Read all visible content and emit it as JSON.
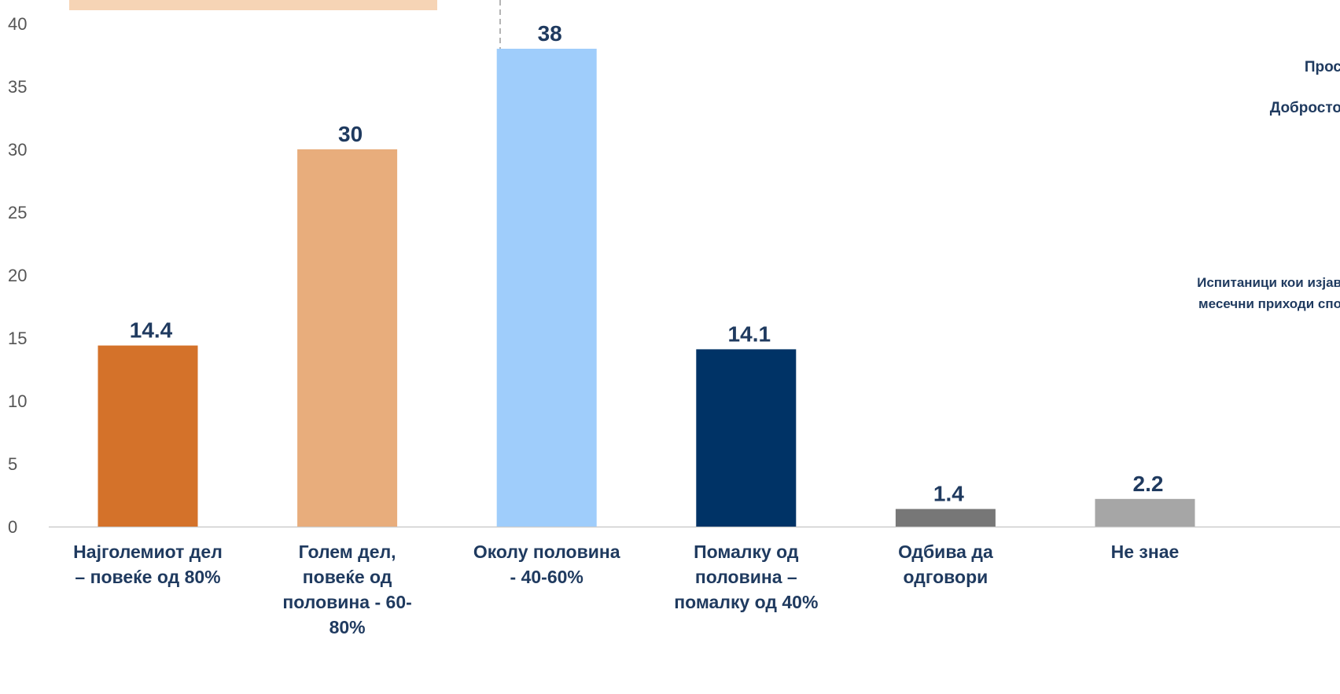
{
  "colors": {
    "axis": "#cccccc",
    "tick_text": "#555555",
    "label_text": "#1f3a5f",
    "peach_box": "#f6d4b5"
  },
  "side_texts": {
    "line1": "Прос",
    "line2": "Добросто",
    "note_line1": "Испитаници кои изјав",
    "note_line2": "месечни приходи спо"
  },
  "chart_data": {
    "type": "bar",
    "title": "",
    "xlabel": "",
    "ylabel": "",
    "ylim": [
      0,
      40
    ],
    "yticks": [
      "0",
      "5",
      "10",
      "15",
      "20",
      "25",
      "30",
      "35",
      "40"
    ],
    "grid": false,
    "categories": [
      "Најголемиот дел – повеќе од 80%",
      "Голем дел, повеќе од половина - 60-80%",
      "Околу половина - 40-60%",
      "Помалку од половина – помалку од 40%",
      "Одбива да одговори",
      "Не знае"
    ],
    "category_label_lines": [
      [
        "Најголемиот дел",
        "– повеќе од 80%"
      ],
      [
        "Голем дел,",
        "повеќе од",
        "половина - 60-",
        "80%"
      ],
      [
        "Околу половина",
        "- 40-60%"
      ],
      [
        "Помалку од",
        "половина –",
        "помалку од 40%"
      ],
      [
        "Одбива да",
        "одговори"
      ],
      [
        "Не знае"
      ]
    ],
    "values": [
      14.4,
      30,
      38,
      14.1,
      1.4,
      2.2
    ],
    "value_labels": [
      "14.4",
      "30",
      "38",
      "14.1",
      "1.4",
      "2.2"
    ],
    "bar_colors": [
      "#d4722a",
      "#e8ad7c",
      "#9fcdfb",
      "#003366",
      "#777777",
      "#a6a6a6"
    ]
  }
}
